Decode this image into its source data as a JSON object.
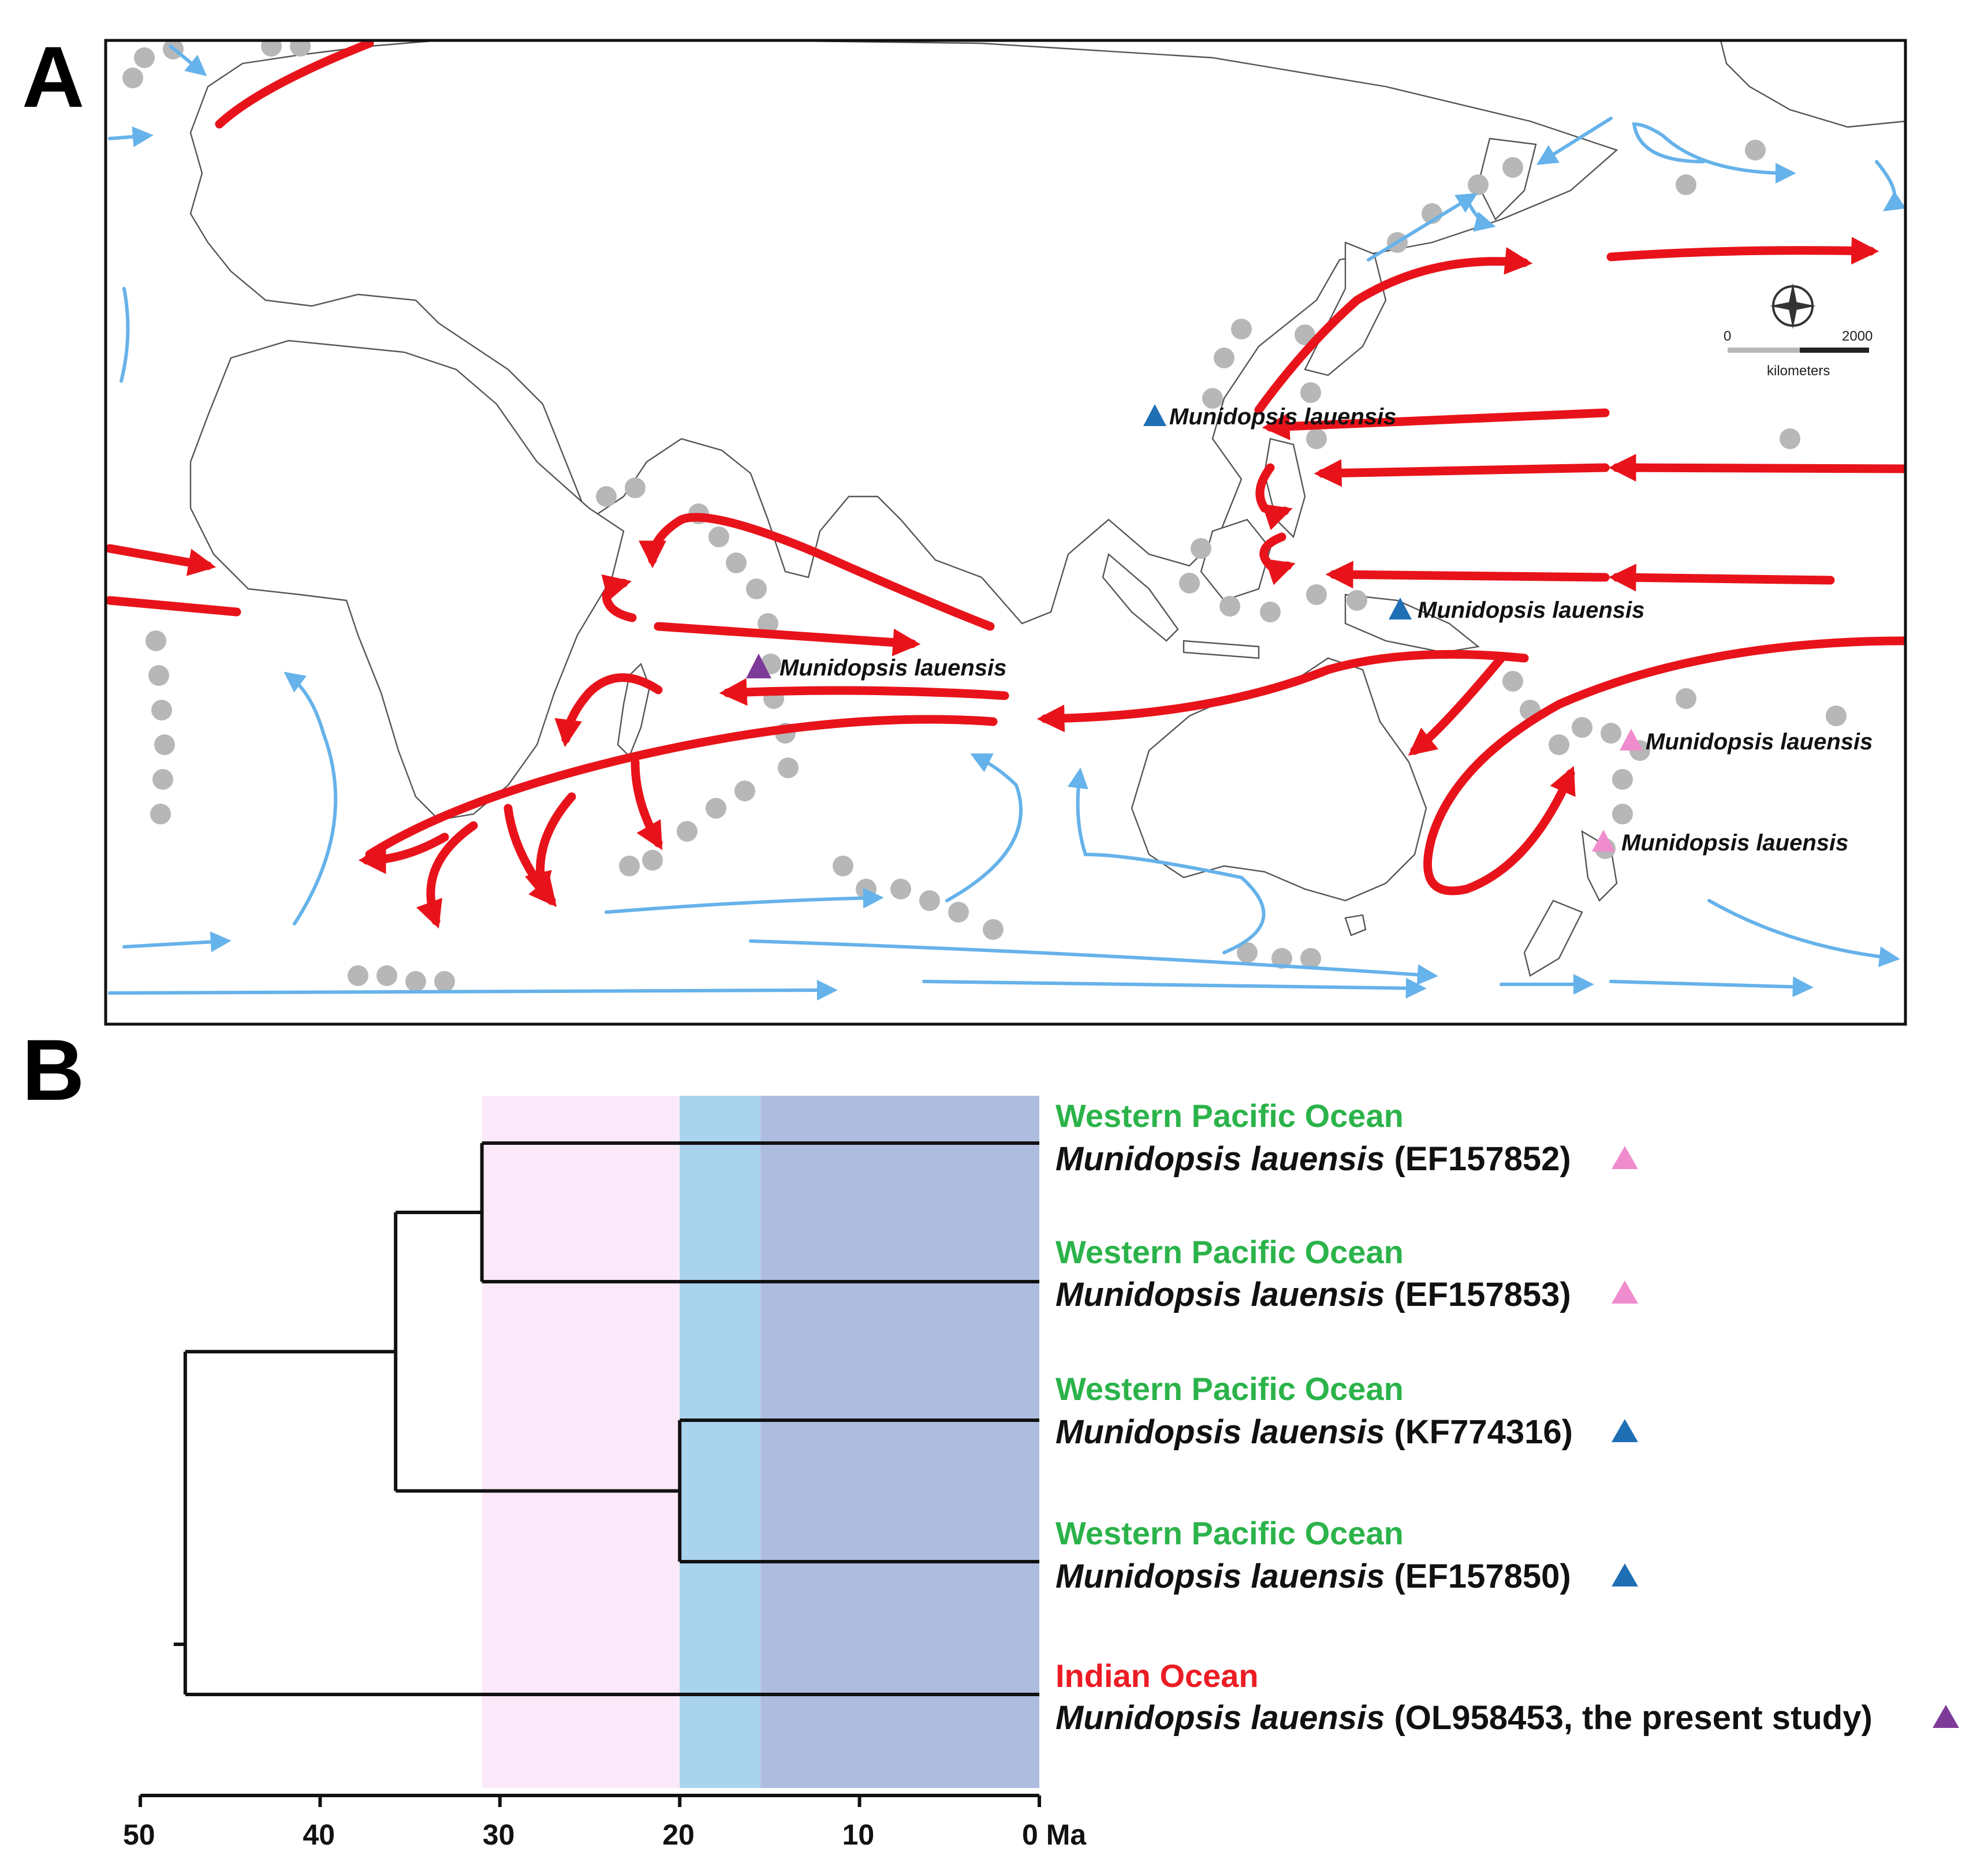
{
  "panels": {
    "a_label": "A",
    "b_label": "B"
  },
  "map": {
    "scale_bar": {
      "zero": "0",
      "max": "2000",
      "unit": "kilometers"
    },
    "localities": [
      {
        "label": "Munidopsis lauensis",
        "color": "#1f6fb5"
      },
      {
        "label": "Munidopsis lauensis",
        "color": "#1f6fb5"
      },
      {
        "label": "Munidopsis lauensis",
        "color": "#7e3a99"
      },
      {
        "label": "Munidopsis lauensis",
        "color": "#f08ccd"
      },
      {
        "label": "Munidopsis lauensis",
        "color": "#f08ccd"
      }
    ],
    "colors": {
      "warm_current": "#e8131a",
      "cold_current": "#66b2ea",
      "ridge": "#b7b7b7"
    }
  },
  "tree": {
    "tips": [
      {
        "ocean": "Western Pacific Ocean",
        "species": "Munidopsis lauensis",
        "accession": "(EF157852)",
        "marker_color": "#f08ccd"
      },
      {
        "ocean": "Western Pacific Ocean",
        "species": "Munidopsis lauensis",
        "accession": "(EF157853)",
        "marker_color": "#f08ccd"
      },
      {
        "ocean": "Western Pacific Ocean",
        "species": "Munidopsis lauensis",
        "accession": "(KF774316)",
        "marker_color": "#1f6fb5"
      },
      {
        "ocean": "Western Pacific Ocean",
        "species": "Munidopsis lauensis",
        "accession": "(EF157850)",
        "marker_color": "#1f6fb5"
      },
      {
        "ocean": "Indian Ocean",
        "species": "Munidopsis lauensis",
        "accession": "(OL958453, the present study)",
        "marker_color": "#7e3a99"
      }
    ],
    "node_ages_ma": {
      "root": 47.5,
      "pacific_clade": 35.8,
      "pink_pair": 31,
      "blue_pair": 20
    },
    "time_bands_ma": [
      {
        "from": 31,
        "to": 20,
        "color": "#fbe8f8"
      },
      {
        "from": 20,
        "to": 15.5,
        "color": "#aad3ee"
      },
      {
        "from": 15.5,
        "to": 0,
        "color": "#aebce0"
      }
    ],
    "axis": {
      "ticks": [
        "50",
        "40",
        "30",
        "20",
        "10",
        "0 Ma"
      ],
      "range_ma": [
        50,
        0
      ]
    }
  }
}
